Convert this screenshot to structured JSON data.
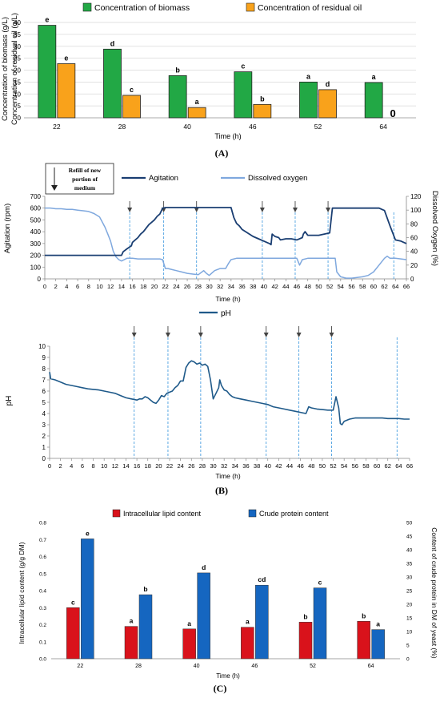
{
  "colors": {
    "biomass": "#22a845",
    "oil": "#f9a21b",
    "agitation": "#1a3e72",
    "dissolved_oxygen": "#7fa8de",
    "ph": "#1f5a8a",
    "refill_line": "#4a9fe0",
    "lipid": "#d9121b",
    "protein": "#1566c0",
    "grid": "#d9d9d9"
  },
  "panel_labels": {
    "a": "(A)",
    "b": "(B)",
    "c": "(C)"
  },
  "chart_data": [
    {
      "type": "bar",
      "panel": "A",
      "categories": [
        "22",
        "28",
        "40",
        "46",
        "52",
        "64"
      ],
      "series": [
        {
          "name": "Concentration of biomass",
          "values": [
            38.8,
            28.8,
            17.7,
            19.3,
            15.0,
            14.8
          ],
          "letters": [
            "e",
            "d",
            "b",
            "c",
            "a",
            "a"
          ]
        },
        {
          "name": "Concentration of residual oil",
          "values": [
            22.7,
            9.4,
            4.3,
            5.6,
            11.8,
            0
          ],
          "letters": [
            "e",
            "c",
            "a",
            "b",
            "d",
            "0"
          ]
        }
      ],
      "xlabel": "Time (h)",
      "ylabel_lines": [
        "Concentration of biomass (g/L)",
        "Concentration of residual oil (g/L)"
      ],
      "ylim": [
        0,
        40
      ],
      "yticks": [
        "0",
        "5",
        "10",
        "15",
        "20",
        "25",
        "30",
        "35",
        "40"
      ],
      "grid": true,
      "legend": "top"
    },
    {
      "type": "line",
      "panel": "B-agitation",
      "annotation": "Refill of new portion of medium",
      "annotation_lines": [
        "Refill of new",
        "portion of",
        "medium"
      ],
      "legend": [
        "Agitation",
        "Dissolved oxygen"
      ],
      "xlabel": "Time (h)",
      "ylabel": "Agitation (rpm)",
      "ylabel_right": "Dissolved Oxygen (%)",
      "xlim": [
        0,
        66
      ],
      "ylim": [
        0,
        700
      ],
      "ylim_right": [
        0,
        120
      ],
      "xticks": [
        "0",
        "2",
        "4",
        "6",
        "8",
        "10",
        "12",
        "14",
        "16",
        "18",
        "20",
        "22",
        "24",
        "26",
        "28",
        "30",
        "32",
        "34",
        "36",
        "38",
        "40",
        "42",
        "44",
        "46",
        "48",
        "50",
        "52",
        "54",
        "56",
        "58",
        "60",
        "62",
        "64",
        "66"
      ],
      "yticks": [
        "0",
        "100",
        "200",
        "300",
        "400",
        "500",
        "600",
        "700"
      ],
      "yticks_right": [
        "0",
        "20",
        "40",
        "60",
        "80",
        "100",
        "120"
      ],
      "refill_times": [
        15.5,
        21.7,
        27.7,
        39.7,
        45.7,
        51.7,
        63.7
      ],
      "arrow_times": [
        15.5,
        21.7,
        27.7,
        39.7,
        45.7,
        51.7
      ],
      "series": [
        {
          "name": "Agitation",
          "x": [
            0,
            14,
            14.3,
            15,
            15.8,
            16,
            16.5,
            17,
            17.5,
            18,
            18.5,
            19,
            19.5,
            20,
            20.5,
            21,
            21.3,
            21.5,
            22,
            34,
            34.5,
            35,
            35.5,
            36,
            37,
            38,
            39,
            40,
            41,
            41.3,
            41.5,
            42,
            42.7,
            43,
            44,
            45,
            46,
            47,
            47.2,
            47.5,
            48,
            50,
            51,
            52,
            52.5,
            53,
            53.3,
            53.6,
            61,
            62,
            63,
            64,
            65,
            66
          ],
          "y": [
            200,
            200,
            230,
            255,
            280,
            310,
            330,
            350,
            380,
            400,
            430,
            460,
            480,
            500,
            530,
            550,
            580,
            600,
            605,
            605,
            520,
            470,
            450,
            420,
            390,
            360,
            340,
            320,
            300,
            290,
            380,
            360,
            350,
            330,
            340,
            340,
            330,
            350,
            380,
            400,
            370,
            370,
            380,
            390,
            600,
            600,
            600,
            600,
            600,
            580,
            450,
            330,
            320,
            300
          ]
        },
        {
          "name": "Dissolved oxygen",
          "x": [
            0,
            1,
            2,
            3,
            4,
            5,
            6,
            7,
            8,
            9,
            10,
            11,
            11.5,
            12,
            12.5,
            13,
            13.5,
            14,
            15,
            16,
            17,
            18,
            19,
            20,
            21,
            21.5,
            22,
            22.5,
            23,
            24,
            25,
            26,
            27,
            28,
            29,
            29.5,
            30,
            31,
            32,
            33,
            33.5,
            34,
            35,
            40,
            45,
            46,
            46.5,
            47,
            48,
            52,
            53,
            53.3,
            54,
            55,
            56,
            57,
            58,
            59,
            60,
            61,
            62,
            62.5,
            63,
            64,
            65,
            66
          ],
          "y": [
            103,
            103,
            102,
            102,
            101,
            101,
            100,
            99,
            98,
            95,
            90,
            75,
            65,
            55,
            40,
            32,
            28,
            26,
            30,
            30,
            29,
            29,
            29,
            29,
            29,
            28,
            15,
            15,
            14,
            12,
            10,
            8,
            7,
            6,
            12,
            8,
            5,
            12,
            15,
            15,
            22,
            28,
            30,
            30,
            30,
            30,
            20,
            28,
            30,
            30,
            30,
            10,
            3,
            1,
            1,
            2,
            3,
            5,
            10,
            20,
            30,
            33,
            30,
            30,
            29,
            28
          ]
        }
      ]
    },
    {
      "type": "line",
      "panel": "B-pH",
      "legend": [
        "pH"
      ],
      "xlabel": "Time (h)",
      "ylabel": "pH",
      "xlim": [
        0,
        66
      ],
      "ylim": [
        0,
        10
      ],
      "xticks": [
        "0",
        "2",
        "4",
        "6",
        "8",
        "10",
        "12",
        "14",
        "16",
        "18",
        "20",
        "22",
        "24",
        "26",
        "28",
        "30",
        "32",
        "34",
        "36",
        "38",
        "40",
        "42",
        "44",
        "46",
        "48",
        "50",
        "52",
        "54",
        "56",
        "58",
        "60",
        "62",
        "64",
        "66"
      ],
      "yticks": [
        "0",
        "1",
        "2",
        "3",
        "4",
        "5",
        "6",
        "7",
        "8",
        "9",
        "10"
      ],
      "refill_times": [
        15.5,
        21.7,
        27.7,
        39.7,
        45.7,
        51.7,
        63.7
      ],
      "arrow_times": [
        15.5,
        21.7,
        27.7,
        39.7,
        45.7,
        51.7
      ],
      "series": [
        {
          "name": "pH",
          "x": [
            0,
            0.2,
            1,
            2,
            3,
            4,
            5,
            6,
            7,
            8,
            9,
            10,
            11,
            12,
            13,
            14,
            15,
            16,
            16.5,
            17,
            17.5,
            18,
            19,
            19.5,
            20,
            20.5,
            21,
            21.5,
            22,
            22.5,
            23,
            23.5,
            24,
            24.5,
            25,
            25.5,
            26,
            26.5,
            27,
            27.5,
            28,
            28.5,
            29,
            29.5,
            30,
            30.5,
            31,
            31.2,
            31.5,
            32,
            32.5,
            33,
            33.5,
            34,
            35,
            36,
            37,
            38,
            39,
            40,
            41,
            42,
            43,
            44,
            45,
            46,
            47,
            47.5,
            48,
            49,
            50,
            51,
            52,
            52.5,
            53,
            53.3,
            53.6,
            54,
            55,
            56,
            57,
            58,
            59,
            60,
            61,
            62,
            63,
            64,
            65,
            66
          ],
          "y": [
            7.7,
            7.1,
            7.0,
            6.8,
            6.6,
            6.5,
            6.4,
            6.3,
            6.2,
            6.15,
            6.1,
            6.0,
            5.9,
            5.8,
            5.6,
            5.4,
            5.3,
            5.2,
            5.3,
            5.3,
            5.5,
            5.4,
            5.0,
            4.9,
            5.2,
            5.6,
            5.5,
            5.8,
            5.9,
            6.0,
            6.3,
            6.5,
            6.9,
            6.9,
            8.1,
            8.5,
            8.7,
            8.6,
            8.4,
            8.5,
            8.3,
            8.4,
            8.2,
            7.0,
            5.3,
            5.8,
            6.3,
            7.0,
            6.5,
            6.1,
            6.0,
            5.7,
            5.5,
            5.4,
            5.3,
            5.2,
            5.1,
            5.0,
            4.9,
            4.8,
            4.6,
            4.5,
            4.4,
            4.3,
            4.2,
            4.1,
            4.0,
            4.6,
            4.5,
            4.4,
            4.35,
            4.3,
            4.3,
            5.5,
            4.5,
            3.1,
            3.0,
            3.3,
            3.5,
            3.6,
            3.6,
            3.6,
            3.6,
            3.6,
            3.6,
            3.55,
            3.55,
            3.55,
            3.5,
            3.5
          ]
        }
      ]
    },
    {
      "type": "bar",
      "panel": "C",
      "categories": [
        "22",
        "28",
        "40",
        "46",
        "52",
        "64"
      ],
      "series": [
        {
          "name": "Intracellular lipid content",
          "axis": "left",
          "values": [
            0.3,
            0.19,
            0.175,
            0.185,
            0.215,
            0.22
          ],
          "letters": [
            "c",
            "a",
            "a",
            "a",
            "b",
            "b"
          ]
        },
        {
          "name": "Crude protein content",
          "axis": "right",
          "values": [
            44,
            23.5,
            31.5,
            27,
            26,
            10.7
          ],
          "letters": [
            "e",
            "b",
            "d",
            "cd",
            "c",
            "a"
          ]
        }
      ],
      "xlabel": "Time (h)",
      "ylabel": "Intracellular lipid content (g/g DM)",
      "ylabel_right": "Content of crude protein in DM of yeast (%)",
      "ylim": [
        0,
        0.8
      ],
      "ylim_right": [
        0,
        50
      ],
      "yticks": [
        "0.0",
        "0.1",
        "0.2",
        "0.3",
        "0.4",
        "0.5",
        "0.6",
        "0.7",
        "0.8"
      ],
      "yticks_right": [
        "0",
        "5",
        "10",
        "15",
        "20",
        "25",
        "30",
        "35",
        "40",
        "45",
        "50"
      ],
      "grid": false,
      "legend": "top"
    }
  ]
}
